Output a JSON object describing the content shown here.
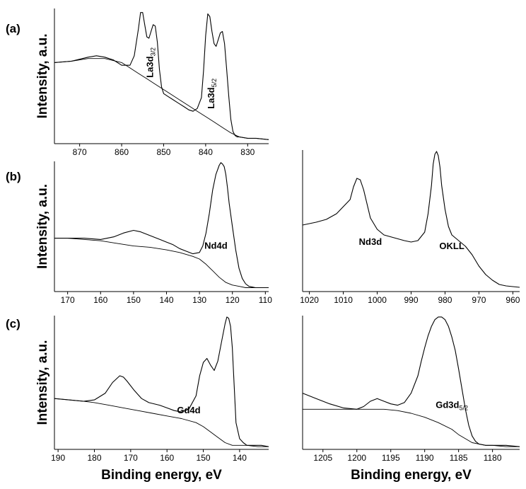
{
  "chart_data": [
    {
      "type": "line",
      "panel": "(a)",
      "ylabel": "Intensity, a.u.",
      "xlabel": "",
      "xlim": [
        876,
        825
      ],
      "xticks": [
        870,
        860,
        850,
        840,
        830
      ],
      "ylim": [
        0,
        100
      ],
      "annotations": [
        {
          "text": "La3d3/2",
          "main": "La3d",
          "sub": "3/2",
          "x": 852.5,
          "y": 60,
          "rotate": -90
        },
        {
          "text": "La3d5/2",
          "main": "La3d",
          "sub": "5/2",
          "x": 838,
          "y": 37,
          "rotate": -90
        }
      ],
      "series": [
        {
          "name": "spectrum",
          "x": [
            876,
            872,
            868,
            866,
            864,
            862,
            860,
            858,
            857,
            856,
            855.5,
            855,
            854.5,
            854,
            853.5,
            853,
            852.5,
            852,
            851.5,
            851,
            850.5,
            850,
            849.5,
            849,
            848,
            847,
            846,
            845,
            844,
            843,
            842,
            841,
            840.5,
            840,
            839.5,
            839,
            838.5,
            838,
            837.5,
            837,
            836.5,
            836,
            835.5,
            835,
            834.5,
            834,
            833.5,
            833,
            832.5,
            832,
            830,
            828,
            825
          ],
          "y": [
            60,
            61,
            64,
            65,
            64,
            62,
            58,
            58,
            65,
            85,
            97,
            97,
            88,
            79,
            78,
            83,
            88,
            87,
            75,
            55,
            42,
            37,
            36,
            35,
            33,
            31,
            29,
            27,
            25,
            24,
            26,
            34,
            54,
            80,
            96,
            94,
            83,
            74,
            72,
            77,
            82,
            83,
            74,
            55,
            35,
            18,
            9,
            6,
            5,
            5,
            4,
            4,
            3
          ]
        },
        {
          "name": "background",
          "x": [
            876,
            872,
            868,
            864,
            860,
            858,
            856,
            854,
            852,
            850,
            848,
            846,
            844,
            842,
            840,
            838,
            836,
            834,
            832,
            830,
            828,
            825
          ],
          "y": [
            60,
            61,
            63,
            63,
            60,
            56,
            52,
            48,
            44,
            40,
            36,
            32,
            28,
            24,
            20,
            16,
            12,
            8,
            5,
            4,
            4,
            3
          ]
        }
      ]
    },
    {
      "type": "line",
      "panel": "(b)",
      "ylabel": "Intensity, a.u.",
      "xlabel": "",
      "xlim": [
        174,
        109
      ],
      "xticks": [
        170,
        160,
        150,
        140,
        130,
        120,
        110
      ],
      "ylim": [
        0,
        100
      ],
      "annotations": [
        {
          "text": "Nd4d",
          "main": "Nd4d",
          "sub": "",
          "x": 125,
          "y": 33,
          "rotate": 0
        }
      ],
      "series": [
        {
          "name": "spectrum",
          "x": [
            174,
            170,
            165,
            160,
            156,
            153,
            150,
            148,
            145,
            142,
            140,
            138,
            136,
            134,
            132,
            130,
            129,
            128,
            127,
            126,
            125,
            124,
            123.5,
            123,
            122.5,
            122,
            121.5,
            121,
            120,
            119,
            118,
            117,
            116,
            115,
            113,
            111,
            109
          ],
          "y": [
            41,
            41,
            41,
            40,
            42,
            45,
            47,
            46,
            43,
            40,
            38,
            36,
            33,
            31,
            29,
            30,
            35,
            45,
            60,
            78,
            90,
            97,
            99,
            98,
            96,
            90,
            80,
            68,
            50,
            32,
            18,
            10,
            6,
            4,
            3,
            3,
            3
          ]
        },
        {
          "name": "background",
          "x": [
            174,
            170,
            165,
            160,
            155,
            150,
            145,
            140,
            136,
            132,
            130,
            128,
            126,
            124,
            122,
            120,
            118,
            116,
            114,
            112,
            109
          ],
          "y": [
            41,
            41,
            40,
            39,
            37,
            35,
            34,
            32,
            30,
            27,
            25,
            21,
            16,
            11,
            7,
            5,
            4,
            3,
            3,
            3,
            3
          ]
        }
      ]
    },
    {
      "type": "line",
      "panel": "(b) right",
      "ylabel": "",
      "xlabel": "",
      "xlim": [
        1022,
        958
      ],
      "xticks": [
        1020,
        1010,
        1000,
        990,
        980,
        970,
        960
      ],
      "ylim": [
        0,
        100
      ],
      "annotations": [
        {
          "text": "Nd3d",
          "main": "Nd3d",
          "sub": "",
          "x": 1002,
          "y": 33,
          "rotate": 0
        },
        {
          "text": "OKLL",
          "main": "OKLL",
          "sub": "",
          "x": 978,
          "y": 30,
          "rotate": 0
        }
      ],
      "series": [
        {
          "name": "spectrum",
          "x": [
            1022,
            1018,
            1015,
            1012,
            1010,
            1008,
            1007,
            1006,
            1005,
            1004,
            1003,
            1002,
            1000,
            998,
            995,
            992,
            990,
            988,
            986,
            985,
            984,
            983.5,
            983,
            982.5,
            982,
            981.5,
            981,
            980,
            979,
            978,
            976,
            974,
            972,
            970,
            968,
            966,
            964,
            962,
            958
          ],
          "y": [
            47,
            49,
            51,
            55,
            60,
            65,
            74,
            80,
            79,
            72,
            62,
            52,
            44,
            40,
            38,
            36,
            35,
            36,
            42,
            55,
            75,
            90,
            97,
            99,
            96,
            88,
            75,
            58,
            46,
            40,
            36,
            32,
            26,
            18,
            12,
            8,
            5,
            4,
            3
          ]
        }
      ]
    },
    {
      "type": "line",
      "panel": "(c)",
      "ylabel": "Intensity, a.u.",
      "xlabel": "Binding energy, eV",
      "xlim": [
        191,
        132
      ],
      "xticks": [
        190,
        180,
        170,
        160,
        150,
        140
      ],
      "ylim": [
        0,
        100
      ],
      "annotations": [
        {
          "text": "Gd4d",
          "main": "Gd4d",
          "sub": "",
          "x": 154,
          "y": 27,
          "rotate": 0
        }
      ],
      "series": [
        {
          "name": "spectrum",
          "x": [
            191,
            187,
            183,
            180,
            177,
            175,
            173,
            172,
            171,
            169,
            167,
            165,
            162,
            160,
            158,
            156,
            154,
            152,
            151,
            150,
            149,
            148,
            147,
            146,
            145,
            144,
            143.5,
            143,
            142.5,
            142,
            141.5,
            141,
            140,
            139,
            138,
            136,
            134,
            132
          ],
          "y": [
            38,
            37,
            36,
            37,
            42,
            50,
            55,
            54,
            51,
            44,
            38,
            35,
            33,
            31,
            29,
            28,
            30,
            40,
            55,
            65,
            68,
            63,
            59,
            66,
            80,
            94,
            99,
            98,
            92,
            76,
            48,
            20,
            8,
            5,
            3,
            3,
            3,
            2
          ]
        },
        {
          "name": "background",
          "x": [
            191,
            187,
            183,
            180,
            176,
            172,
            168,
            164,
            160,
            156,
            152,
            150,
            148,
            146,
            144,
            142,
            141,
            140,
            138,
            135,
            132
          ],
          "y": [
            38,
            37,
            36,
            35,
            33,
            31,
            29,
            27,
            25,
            23,
            20,
            17,
            13,
            9,
            5,
            3,
            3,
            3,
            3,
            2,
            2
          ]
        }
      ]
    },
    {
      "type": "line",
      "panel": "(c) right",
      "ylabel": "",
      "xlabel": "Binding energy, eV",
      "xlim": [
        1208,
        1176
      ],
      "xticks": [
        1205,
        1200,
        1195,
        1190,
        1185,
        1180
      ],
      "ylim": [
        0,
        100
      ],
      "annotations": [
        {
          "text": "Gd3d5/2",
          "main": "Gd3d",
          "sub": "5/2",
          "x": 1186,
          "y": 31,
          "rotate": 0
        }
      ],
      "series": [
        {
          "name": "spectrum",
          "x": [
            1208,
            1206,
            1204,
            1202,
            1200,
            1199,
            1198,
            1197,
            1196,
            1195,
            1194,
            1193,
            1192,
            1191,
            1190.5,
            1190,
            1189.5,
            1189,
            1188.5,
            1188,
            1187.5,
            1187,
            1186.5,
            1186,
            1185.5,
            1185,
            1184.5,
            1184,
            1183.5,
            1183,
            1182.5,
            1182,
            1181,
            1180,
            1178,
            1176
          ],
          "y": [
            42,
            38,
            34,
            31,
            30,
            32,
            36,
            38,
            36,
            34,
            33,
            35,
            42,
            55,
            66,
            76,
            85,
            92,
            97,
            99,
            99,
            97,
            92,
            84,
            74,
            60,
            45,
            30,
            18,
            10,
            6,
            4,
            3,
            3,
            3,
            2
          ]
        },
        {
          "name": "background",
          "x": [
            1208,
            1205,
            1202,
            1200,
            1198,
            1196,
            1194,
            1192,
            1190,
            1188,
            1186,
            1185,
            1184,
            1183,
            1182,
            1181,
            1180,
            1178,
            1176
          ],
          "y": [
            30,
            30,
            30,
            30,
            30,
            30,
            29,
            27,
            24,
            20,
            15,
            11,
            8,
            5,
            4,
            3,
            3,
            2,
            2
          ]
        }
      ]
    }
  ],
  "panel_labels": [
    "(a)",
    "(b)",
    "(c)"
  ]
}
